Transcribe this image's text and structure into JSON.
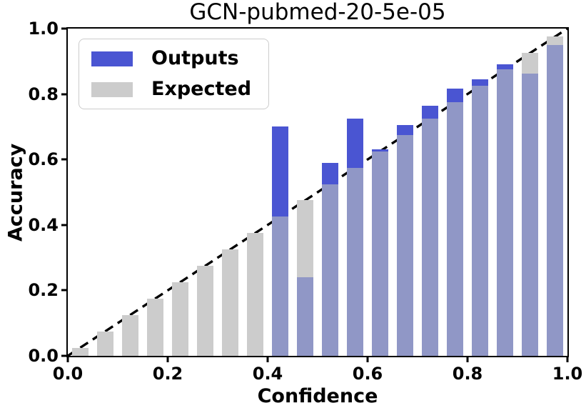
{
  "title": "GCN-pubmed-20-5e-05",
  "legend": {
    "outputs": {
      "label": "Outputs",
      "color": "#4A55D2"
    },
    "expected": {
      "label": "Expected",
      "color": "#CCCCCC"
    }
  },
  "axes": {
    "x": {
      "label": "Confidence",
      "range": [
        0,
        1
      ],
      "ticks": [
        0,
        0.2,
        0.4,
        0.6,
        0.8,
        1.0
      ],
      "tick_labels": [
        "0.0",
        "0.2",
        "0.4",
        "0.6",
        "0.8",
        "1.0"
      ]
    },
    "y": {
      "label": "Accuracy",
      "range": [
        0,
        1
      ],
      "ticks": [
        0,
        0.2,
        0.4,
        0.6,
        0.8,
        1.0
      ],
      "tick_labels": [
        "0.0",
        "0.2",
        "0.4",
        "0.6",
        "0.8",
        "1.0"
      ]
    }
  },
  "chart_data": {
    "type": "bar",
    "title": "GCN-pubmed-20-5e-05",
    "xlabel": "Confidence",
    "ylabel": "Accuracy",
    "xlim": [
      0,
      1
    ],
    "ylim": [
      0,
      1
    ],
    "grid": false,
    "legend_position": "upper left",
    "bin_width": 0.05,
    "bar_width": 0.033,
    "bin_centers": [
      0.025,
      0.075,
      0.125,
      0.175,
      0.225,
      0.275,
      0.325,
      0.375,
      0.425,
      0.475,
      0.525,
      0.575,
      0.625,
      0.675,
      0.725,
      0.775,
      0.825,
      0.875,
      0.925,
      0.975
    ],
    "series": [
      {
        "name": "Outputs",
        "color": "#4A55D2",
        "values": [
          0,
          0,
          0,
          0,
          0,
          0,
          0,
          0,
          0.7,
          0.24,
          0.59,
          0.725,
          0.63,
          0.705,
          0.765,
          0.817,
          0.845,
          0.89,
          0.863,
          0.95
        ]
      },
      {
        "name": "Expected",
        "color": "#CCCCCC",
        "values": [
          0.025,
          0.075,
          0.125,
          0.175,
          0.225,
          0.275,
          0.325,
          0.375,
          0.425,
          0.475,
          0.525,
          0.575,
          0.625,
          0.675,
          0.725,
          0.775,
          0.825,
          0.875,
          0.925,
          0.975
        ]
      }
    ],
    "overlap_color": "#9097C6",
    "reference_line": {
      "type": "diagonal",
      "style": "dashed",
      "color": "#000000",
      "from": [
        0,
        0
      ],
      "to": [
        1,
        1
      ]
    }
  }
}
